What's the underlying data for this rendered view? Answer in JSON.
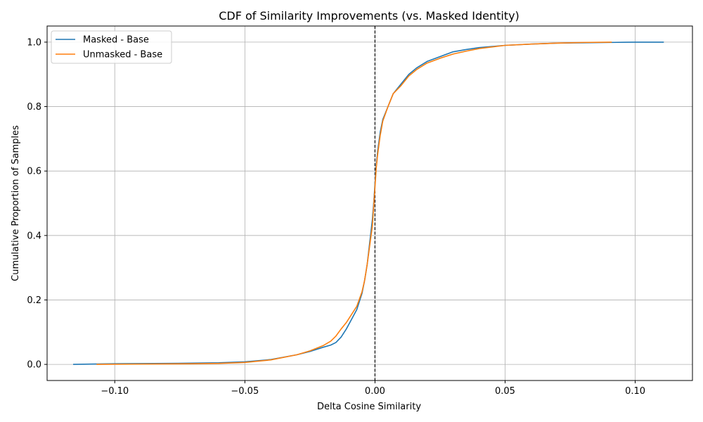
{
  "chart_data": {
    "type": "line",
    "title": "CDF of Similarity Improvements (vs. Masked Identity)",
    "xlabel": "Delta Cosine Similarity",
    "ylabel": "Cumulative Proportion of Samples",
    "xlim": [
      -0.126,
      0.122
    ],
    "ylim": [
      -0.05,
      1.05
    ],
    "x_ticks": [
      -0.1,
      -0.05,
      0.0,
      0.05,
      0.1
    ],
    "x_tick_labels": [
      "−0.10",
      "−0.05",
      "0.00",
      "0.05",
      "0.10"
    ],
    "y_ticks": [
      0.0,
      0.2,
      0.4,
      0.6,
      0.8,
      1.0
    ],
    "y_tick_labels": [
      "0.0",
      "0.2",
      "0.4",
      "0.6",
      "0.8",
      "1.0"
    ],
    "grid": true,
    "legend_position": "top-left",
    "reference_line": {
      "x": 0.0,
      "style": "dashed",
      "color": "#000000"
    },
    "series": [
      {
        "name": "Masked - Base",
        "color": "#1f77b4",
        "x": [
          -0.116,
          -0.1,
          -0.08,
          -0.06,
          -0.05,
          -0.04,
          -0.03,
          -0.025,
          -0.02,
          -0.017,
          -0.015,
          -0.013,
          -0.011,
          -0.009,
          -0.007,
          -0.005,
          -0.004,
          -0.003,
          -0.002,
          -0.001,
          -0.0005,
          0.0,
          0.0005,
          0.001,
          0.002,
          0.003,
          0.005,
          0.007,
          0.01,
          0.013,
          0.016,
          0.02,
          0.025,
          0.03,
          0.035,
          0.04,
          0.05,
          0.06,
          0.07,
          0.08,
          0.09,
          0.1,
          0.111
        ],
        "y": [
          0.0,
          0.002,
          0.003,
          0.005,
          0.008,
          0.015,
          0.03,
          0.04,
          0.053,
          0.06,
          0.068,
          0.085,
          0.11,
          0.14,
          0.17,
          0.22,
          0.26,
          0.31,
          0.38,
          0.45,
          0.5,
          0.56,
          0.62,
          0.66,
          0.72,
          0.76,
          0.8,
          0.84,
          0.87,
          0.9,
          0.92,
          0.94,
          0.955,
          0.97,
          0.977,
          0.983,
          0.99,
          0.994,
          0.997,
          0.998,
          0.999,
          1.0,
          1.0
        ]
      },
      {
        "name": "Unmasked - Base",
        "color": "#ff7f0e",
        "x": [
          -0.107,
          -0.09,
          -0.07,
          -0.06,
          -0.05,
          -0.04,
          -0.03,
          -0.025,
          -0.02,
          -0.017,
          -0.015,
          -0.013,
          -0.011,
          -0.009,
          -0.007,
          -0.005,
          -0.004,
          -0.003,
          -0.002,
          -0.001,
          -0.0005,
          0.0,
          0.0005,
          0.001,
          0.002,
          0.003,
          0.005,
          0.007,
          0.01,
          0.013,
          0.016,
          0.02,
          0.025,
          0.03,
          0.035,
          0.04,
          0.05,
          0.06,
          0.07,
          0.08,
          0.091
        ],
        "y": [
          0.0,
          0.001,
          0.002,
          0.003,
          0.006,
          0.014,
          0.03,
          0.042,
          0.058,
          0.072,
          0.088,
          0.11,
          0.13,
          0.155,
          0.18,
          0.225,
          0.26,
          0.31,
          0.37,
          0.43,
          0.49,
          0.55,
          0.61,
          0.65,
          0.71,
          0.755,
          0.8,
          0.84,
          0.865,
          0.895,
          0.915,
          0.935,
          0.95,
          0.963,
          0.972,
          0.98,
          0.99,
          0.994,
          0.997,
          0.999,
          1.0
        ]
      }
    ]
  }
}
